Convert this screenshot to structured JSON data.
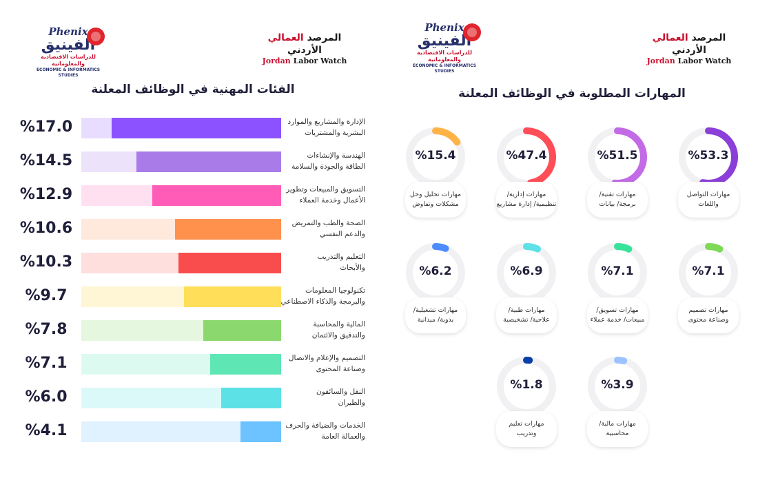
{
  "logos": {
    "phenix_en": "Phenix",
    "phenix_ar": "الفينيق",
    "phenix_sub_ar": "للدراسات الاقتصادية والمعلوماتية",
    "phenix_sub_en": "ECONOMIC & INFORMATICS STUDIES",
    "jlw_ar_1": "المرصد",
    "jlw_ar_2": "العمالي",
    "jlw_ar_3": "الأردني",
    "jlw_en_1": "Jordan",
    "jlw_en_2": "Labor Watch"
  },
  "chart_data": [
    {
      "type": "bar",
      "title": "الفئات المهنية في الوظائف المعلنة",
      "categories": [
        [
          "الإدارة والمشاريع والموارد",
          "البشرية والمشتريات"
        ],
        [
          "الهندسة والإنشاءات",
          "الطاقة والجودة والسلامة"
        ],
        [
          "التسويق والمبيعات وتطوير",
          "الأعمال وخدمة العملاء"
        ],
        [
          "الصحة والطب والتمريض",
          "والدعم النفسي"
        ],
        [
          "التعليم والتدريب",
          "والأبحاث"
        ],
        [
          "تكنولوجيا المعلومات",
          "والبرمجة والذكاء الاصطناعي"
        ],
        [
          "المالية والمحاسبة",
          "والتدقيق والائتمان"
        ],
        [
          "التصميم والإعلام والاتصال",
          "وصناعة المحتوى"
        ],
        [
          "النقل والسائقون",
          "والطيران"
        ],
        [
          "الخدمات والضيافة والحرف",
          "والعمالة العامة"
        ]
      ],
      "values": [
        17.0,
        14.5,
        12.9,
        10.6,
        10.3,
        9.7,
        7.8,
        7.1,
        6.0,
        4.1
      ],
      "value_labels": [
        "%17.0",
        "%14.5",
        "%12.9",
        "%10.6",
        "%10.3",
        "%9.7",
        "%7.8",
        "%7.1",
        "%6.0",
        "%4.1"
      ],
      "bar_colors": [
        "#8c52ff",
        "#a97be8",
        "#ff5cb8",
        "#ff914d",
        "#f94c4c",
        "#ffde59",
        "#8bd86e",
        "#5fe6b5",
        "#5ce1e6",
        "#6cc3ff"
      ],
      "track_colors": [
        "#e8ddff",
        "#ece2fa",
        "#ffe0f1",
        "#ffe9dc",
        "#ffdede",
        "#fff6d6",
        "#e6f7df",
        "#ddfaf0",
        "#dcf9fa",
        "#e0f2ff"
      ],
      "xlim": [
        0,
        20
      ]
    },
    {
      "type": "pie",
      "title": "المهارات المطلوبة في الوظائف المعلنة",
      "categories": [
        [
          "مهارات التواصل",
          "واللغات"
        ],
        [
          "مهارات تقنية/",
          "برمجة/ بيانات"
        ],
        [
          "مهارات إدارية/",
          "تنظيمية/ إدارة مشاريع"
        ],
        [
          "مهارات تحليل وحل",
          "مشكلات وتفاوض"
        ],
        [
          "مهارات تصميم",
          "وصناعة محتوى"
        ],
        [
          "مهارات تسويق/",
          "مبيعات/ خدمة عملاء"
        ],
        [
          "مهارات طبية/",
          "علاجية/ تشخيصية"
        ],
        [
          "مهارات تشغيلية/",
          "يدوية/ ميدانية"
        ],
        [
          "مهارات مالية/",
          "محاسبية"
        ],
        [
          "مهارات تعليم",
          "وتدريب"
        ]
      ],
      "values": [
        53.3,
        51.5,
        47.4,
        15.4,
        7.1,
        7.1,
        6.9,
        6.2,
        3.9,
        1.8
      ],
      "value_labels": [
        "%53.3",
        "%51.5",
        "%47.4",
        "%15.4",
        "%7.1",
        "%7.1",
        "%6.9",
        "%6.2",
        "%3.9",
        "%1.8"
      ],
      "colors": [
        "#8c3fd8",
        "#c36ae6",
        "#ff4d57",
        "#ffb347",
        "#7ed957",
        "#38e29a",
        "#5ce1e6",
        "#4d8cff",
        "#9cc3ff",
        "#0b3fa8"
      ],
      "track_color": "#f1f1f3"
    }
  ]
}
